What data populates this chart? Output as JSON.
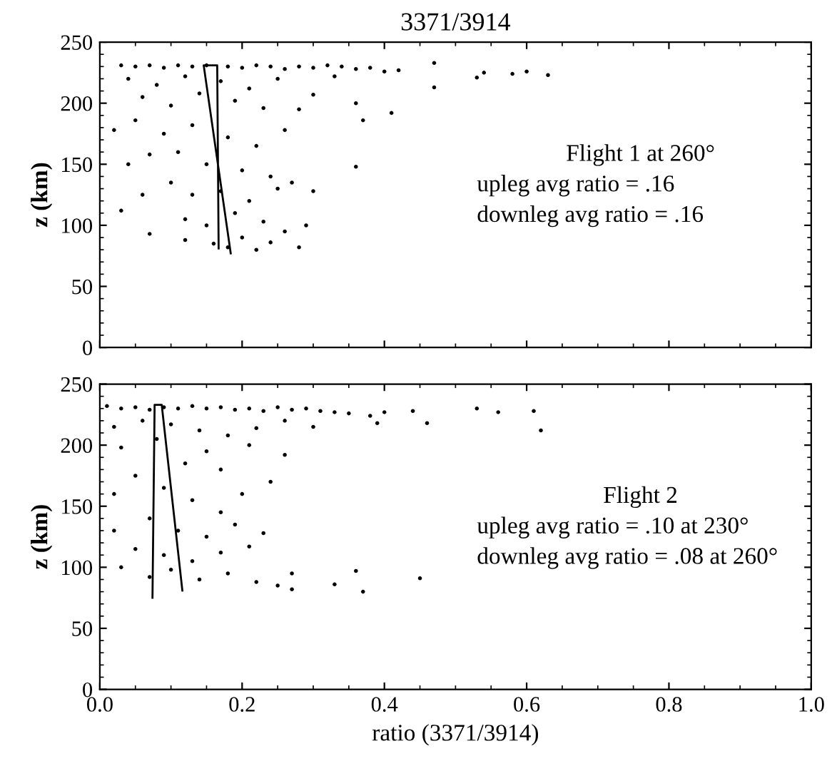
{
  "chart_data": [
    {
      "type": "scatter",
      "title": "3371/3914",
      "ylabel": "z (km)",
      "xlim": [
        0,
        1
      ],
      "ylim": [
        0,
        250
      ],
      "xticks": [
        {
          "value": 0,
          "label": null
        },
        {
          "value": 0.2,
          "label": null
        },
        {
          "value": 0.4,
          "label": null
        },
        {
          "value": 0.6,
          "label": null
        },
        {
          "value": 0.8,
          "label": null
        },
        {
          "value": 1,
          "label": null
        }
      ],
      "yticks": [
        0,
        50,
        100,
        150,
        200,
        250
      ],
      "tick_labels": "y",
      "grid": false,
      "legend": false,
      "marker": "circle",
      "annotations": [
        "Flight 1 at 260°",
        "upleg avg ratio = .16",
        "downleg avg ratio = .16"
      ],
      "series": [
        {
          "color": "#000000",
          "x": [
            0.03,
            0.05,
            0.07,
            0.09,
            0.11,
            0.13,
            0.15,
            0.18,
            0.2,
            0.22,
            0.24,
            0.26,
            0.28,
            0.3,
            0.32,
            0.34,
            0.36,
            0.38,
            0.4,
            0.42,
            0.47,
            0.54,
            0.58,
            0.6,
            0.63,
            0.04,
            0.08,
            0.12,
            0.17,
            0.21,
            0.25,
            0.33,
            0.47,
            0.53,
            0.3,
            0.36,
            0.41,
            0.37,
            0.28,
            0.06,
            0.1,
            0.14,
            0.19,
            0.23,
            0.02,
            0.05,
            0.09,
            0.13,
            0.18,
            0.22,
            0.26,
            0.36,
            0.04,
            0.07,
            0.11,
            0.15,
            0.2,
            0.24,
            0.27,
            0.1,
            0.13,
            0.17,
            0.21,
            0.25,
            0.3,
            0.06,
            0.03,
            0.07,
            0.12,
            0.15,
            0.19,
            0.23,
            0.29,
            0.12,
            0.16,
            0.2,
            0.24,
            0.28,
            0.18,
            0.26,
            0.22
          ],
          "values": [
            231,
            230,
            231,
            229,
            231,
            230,
            231,
            230,
            229,
            231,
            230,
            228,
            230,
            229,
            231,
            230,
            228,
            229,
            226,
            227,
            233,
            225,
            224,
            226,
            223,
            220,
            215,
            222,
            218,
            212,
            220,
            222,
            213,
            221,
            207,
            200,
            192,
            186,
            195,
            205,
            198,
            208,
            202,
            196,
            178,
            186,
            175,
            182,
            172,
            165,
            178,
            148,
            150,
            158,
            160,
            150,
            145,
            140,
            135,
            135,
            125,
            128,
            120,
            130,
            128,
            125,
            112,
            93,
            105,
            100,
            110,
            103,
            100,
            88,
            85,
            90,
            86,
            82,
            82,
            95,
            80
          ]
        },
        {
          "type": "line",
          "color": "#000000",
          "marker": "none",
          "x": [
            0.167,
            0.165,
            0.146,
            0.184
          ],
          "values": [
            81,
            231,
            231,
            77
          ]
        }
      ]
    },
    {
      "type": "scatter",
      "xlabel": "ratio (3371/3914)",
      "ylabel": "z (km)",
      "xlim": [
        0,
        1
      ],
      "ylim": [
        0,
        250
      ],
      "xticks": [
        {
          "value": 0,
          "label": "0.0"
        },
        {
          "value": 0.2,
          "label": "0.2"
        },
        {
          "value": 0.4,
          "label": "0.4"
        },
        {
          "value": 0.6,
          "label": "0.6"
        },
        {
          "value": 0.8,
          "label": "0.8"
        },
        {
          "value": 1,
          "label": "1.0"
        }
      ],
      "yticks": [
        0,
        50,
        100,
        150,
        200,
        250
      ],
      "grid": false,
      "legend": false,
      "marker": "circle",
      "annotations": [
        "Flight 2",
        "upleg avg ratio = .10 at 230°",
        "downleg avg ratio = .08 at 260°"
      ],
      "series": [
        {
          "color": "#000000",
          "x": [
            0.01,
            0.03,
            0.05,
            0.07,
            0.09,
            0.11,
            0.13,
            0.15,
            0.17,
            0.19,
            0.21,
            0.23,
            0.25,
            0.27,
            0.29,
            0.31,
            0.33,
            0.35,
            0.38,
            0.4,
            0.44,
            0.46,
            0.53,
            0.56,
            0.61,
            0.62,
            0.02,
            0.06,
            0.1,
            0.14,
            0.18,
            0.22,
            0.26,
            0.3,
            0.39,
            0.26,
            0.21,
            0.15,
            0.08,
            0.03,
            0.12,
            0.17,
            0.05,
            0.24,
            0.2,
            0.09,
            0.13,
            0.02,
            0.17,
            0.07,
            0.11,
            0.15,
            0.19,
            0.23,
            0.02,
            0.05,
            0.09,
            0.13,
            0.17,
            0.21,
            0.1,
            0.03,
            0.07,
            0.14,
            0.18,
            0.22,
            0.25,
            0.27,
            0.33,
            0.37,
            0.27,
            0.36,
            0.45
          ],
          "values": [
            232,
            230,
            231,
            229,
            231,
            230,
            232,
            230,
            231,
            229,
            230,
            228,
            231,
            229,
            230,
            228,
            227,
            226,
            224,
            227,
            228,
            218,
            230,
            227,
            228,
            212,
            215,
            220,
            217,
            212,
            208,
            214,
            220,
            215,
            218,
            192,
            200,
            195,
            205,
            198,
            185,
            180,
            175,
            170,
            160,
            165,
            155,
            160,
            145,
            140,
            130,
            125,
            135,
            128,
            130,
            115,
            110,
            105,
            112,
            117,
            98,
            100,
            92,
            90,
            95,
            88,
            85,
            82,
            86,
            80,
            95,
            97,
            91
          ]
        },
        {
          "type": "line",
          "color": "#000000",
          "marker": "none",
          "x": [
            0.074,
            0.077,
            0.087,
            0.116
          ],
          "values": [
            75,
            233,
            233,
            81
          ]
        }
      ]
    }
  ]
}
